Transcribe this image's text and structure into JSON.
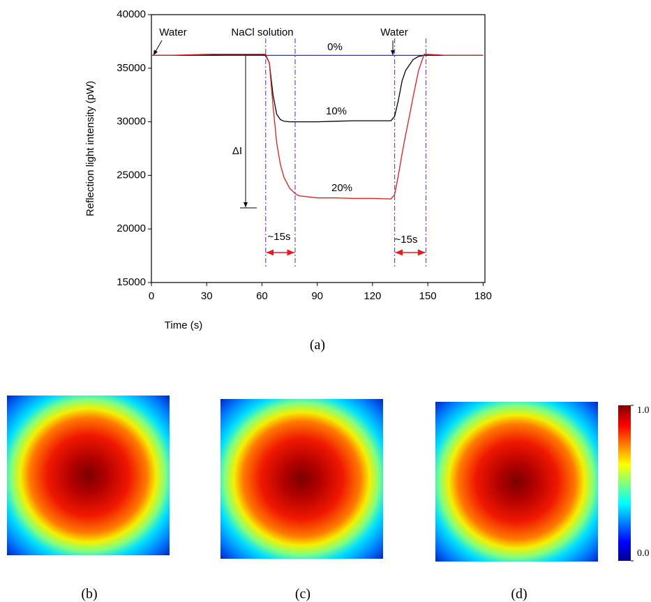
{
  "chart_data": {
    "type": "line",
    "x_label": "Time (s)",
    "y_label": "Reflection light intensity (pW)",
    "caption": "(a)",
    "x": [
      0,
      10,
      20,
      30,
      40,
      50,
      60,
      62,
      64,
      66,
      68,
      70,
      72,
      75,
      78,
      80,
      90,
      100,
      110,
      120,
      130,
      132,
      134,
      136,
      138,
      140,
      142,
      145,
      148,
      150,
      160,
      170,
      180
    ],
    "series": [
      {
        "name": "0%",
        "color": "#2a2ad8",
        "values": [
          36200,
          36200,
          36200,
          36200,
          36200,
          36200,
          36200,
          36200,
          36200,
          36200,
          36200,
          36200,
          36200,
          36200,
          36200,
          36200,
          36200,
          36200,
          36200,
          36200,
          36200,
          36200,
          36200,
          36200,
          36200,
          36200,
          36200,
          36200,
          36200,
          36200,
          36200,
          36200,
          36200
        ]
      },
      {
        "name": "10%",
        "color": "#000000",
        "values": [
          36200,
          36200,
          36200,
          36200,
          36250,
          36250,
          36250,
          36200,
          35500,
          32500,
          30700,
          30200,
          30050,
          30000,
          30000,
          30000,
          30000,
          30050,
          30100,
          30100,
          30100,
          30500,
          32000,
          33800,
          34800,
          35300,
          35800,
          36100,
          36200,
          36200,
          36200,
          36200,
          36200
        ]
      },
      {
        "name": "20%",
        "color": "#e8191c",
        "values": [
          36200,
          36200,
          36250,
          36300,
          36300,
          36300,
          36300,
          36300,
          35500,
          31500,
          28000,
          26000,
          24800,
          23800,
          23300,
          23100,
          22900,
          22900,
          22850,
          22850,
          22800,
          23200,
          25000,
          27000,
          28800,
          30500,
          32300,
          34800,
          36300,
          36300,
          36200,
          36200,
          36200
        ]
      }
    ],
    "annotations": [
      "Water",
      "NaCl solution",
      "Water",
      "ΔI",
      "~15s",
      "~15s"
    ],
    "vlines": [
      62,
      78,
      132,
      149
    ],
    "vline_color": "#7a3fe0",
    "xlim": [
      0,
      181
    ],
    "xticks": [
      0,
      30,
      60,
      90,
      120,
      150,
      180
    ],
    "ylim": [
      15000,
      40000
    ],
    "yticks": [
      15000,
      20000,
      25000,
      30000,
      35000,
      40000
    ]
  },
  "panels": [
    {
      "label": "(b)"
    },
    {
      "label": "(c)"
    },
    {
      "label": "(d)"
    }
  ],
  "colorbar": {
    "lim": [
      0,
      1
    ],
    "ticks": [
      {
        "value": 1,
        "label": "1.0"
      },
      {
        "value": 0,
        "label": "0.0"
      }
    ]
  }
}
